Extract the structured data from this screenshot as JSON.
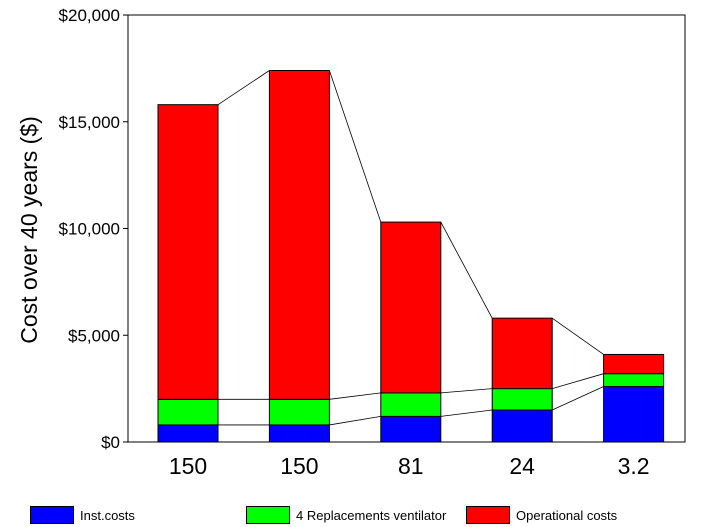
{
  "chart_data": {
    "type": "bar",
    "stacked": true,
    "title": "",
    "xlabel": "",
    "ylabel": "Cost over 40 years ($)",
    "ylim": [
      0,
      20000
    ],
    "yticks": [
      0,
      5000,
      10000,
      15000,
      20000
    ],
    "ytick_labels": [
      "$0",
      "$5,000",
      "$10,000",
      "$15,000",
      "$20,000"
    ],
    "categories": [
      "150",
      "150",
      "81",
      "24",
      "3.2"
    ],
    "grid": false,
    "connector_lines": true,
    "legend_position": "bottom",
    "series": [
      {
        "name": "Inst.costs",
        "color": "#0000ff",
        "values": [
          800,
          800,
          1200,
          1500,
          2600
        ]
      },
      {
        "name": "4 Replacements ventilator",
        "color": "#00ff00",
        "values": [
          1200,
          1200,
          1100,
          1000,
          600
        ]
      },
      {
        "name": "Operational costs",
        "color": "#ff0000",
        "values": [
          13800,
          15400,
          8000,
          3300,
          900
        ]
      }
    ]
  }
}
